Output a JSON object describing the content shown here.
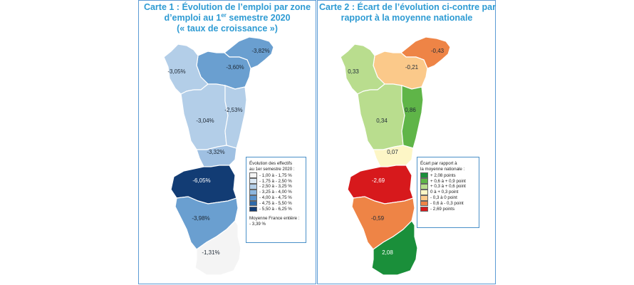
{
  "map_left": {
    "title_line1": "Carte 1 : Évolution de l’emploi par zone",
    "title_line2a": "d’emploi au 1",
    "title_line2_sup": "er",
    "title_line2b": " semestre 2020",
    "title_line3": "(« taux de croissance »)",
    "zones": [
      {
        "id": "haguenau",
        "label": "-3,82%",
        "color": "#6a9fd0"
      },
      {
        "id": "strasbourg",
        "label": "-3,60%",
        "color": "#6a9fd0"
      },
      {
        "id": "saverne",
        "label": "-3,05%",
        "color": "#b3cee8"
      },
      {
        "id": "molsheim",
        "label": "-3,04%",
        "color": "#b3cee8"
      },
      {
        "id": "selestat",
        "label": "-2,53%",
        "color": "#b3cee8"
      },
      {
        "id": "colmar",
        "label": "-3,32%",
        "color": "#9fc0e2"
      },
      {
        "id": "thann",
        "label": "-6,05%",
        "color": "#123c74"
      },
      {
        "id": "mulhouse",
        "label": "-3,98%",
        "color": "#6a9fd0"
      },
      {
        "id": "saint-louis",
        "label": "-1,31%",
        "color": "#f4f4f4"
      }
    ],
    "legend": {
      "title_line1": "Évolution des effectifs",
      "title_line2": "au 1er semestre 2020 :",
      "items": [
        {
          "label": "- 1,00 à - 1,75 %",
          "color": "#f4f4f4"
        },
        {
          "label": "- 1,75 à - 2,50 %",
          "color": "#dbe8f4"
        },
        {
          "label": "- 2,50 à - 3,25 %",
          "color": "#b3cee8"
        },
        {
          "label": "- 3,25 à - 4,00 %",
          "color": "#8eb6dd"
        },
        {
          "label": "- 4,00 à - 4,75 %",
          "color": "#5a92cb"
        },
        {
          "label": "- 4,75 à - 5,50 %",
          "color": "#2f6aaa"
        },
        {
          "label": "- 5,50 à - 6,25 %",
          "color": "#123c74"
        }
      ],
      "note_line1": "Moyenne France entière :",
      "note_line2": "- 3,39 %"
    }
  },
  "map_right": {
    "title_line1": "Carte 2 : Écart de l’évolution ci-contre par",
    "title_line2": "rapport à la moyenne nationale",
    "zones": [
      {
        "id": "haguenau",
        "label": "-0,43",
        "color": "#ee8446"
      },
      {
        "id": "strasbourg",
        "label": "-0,21",
        "color": "#fbc98a"
      },
      {
        "id": "saverne",
        "label": "0,33",
        "color": "#b9dd8e"
      },
      {
        "id": "molsheim",
        "label": "0,34",
        "color": "#b9dd8e"
      },
      {
        "id": "selestat",
        "label": "0,86",
        "color": "#5fb548"
      },
      {
        "id": "colmar",
        "label": "0,07",
        "color": "#fdf6c6"
      },
      {
        "id": "thann",
        "label": "-2,69",
        "color": "#d7191c"
      },
      {
        "id": "mulhouse",
        "label": "-0,59",
        "color": "#ee8446"
      },
      {
        "id": "saint-louis",
        "label": "2,08",
        "color": "#1a8f3a"
      }
    ],
    "legend": {
      "title_line1": "Écart par rapport à",
      "title_line2": "la moyenne nationale :",
      "items": [
        {
          "label": "+ 2,08 points",
          "color": "#1a8f3a"
        },
        {
          "label": "+ 0,6 à + 0,9 point",
          "color": "#5fb548"
        },
        {
          "label": "+ 0,3 à + 0,6 point",
          "color": "#b9dd8e"
        },
        {
          "label": "0 à + 0,3 point",
          "color": "#fdf6c6"
        },
        {
          "label": "- 0,3 à 0 point",
          "color": "#fbc98a"
        },
        {
          "label": "- 0,6 à - 0,3 point",
          "color": "#ee8446"
        },
        {
          "label": "- 2,69 points",
          "color": "#d7191c"
        }
      ]
    }
  }
}
